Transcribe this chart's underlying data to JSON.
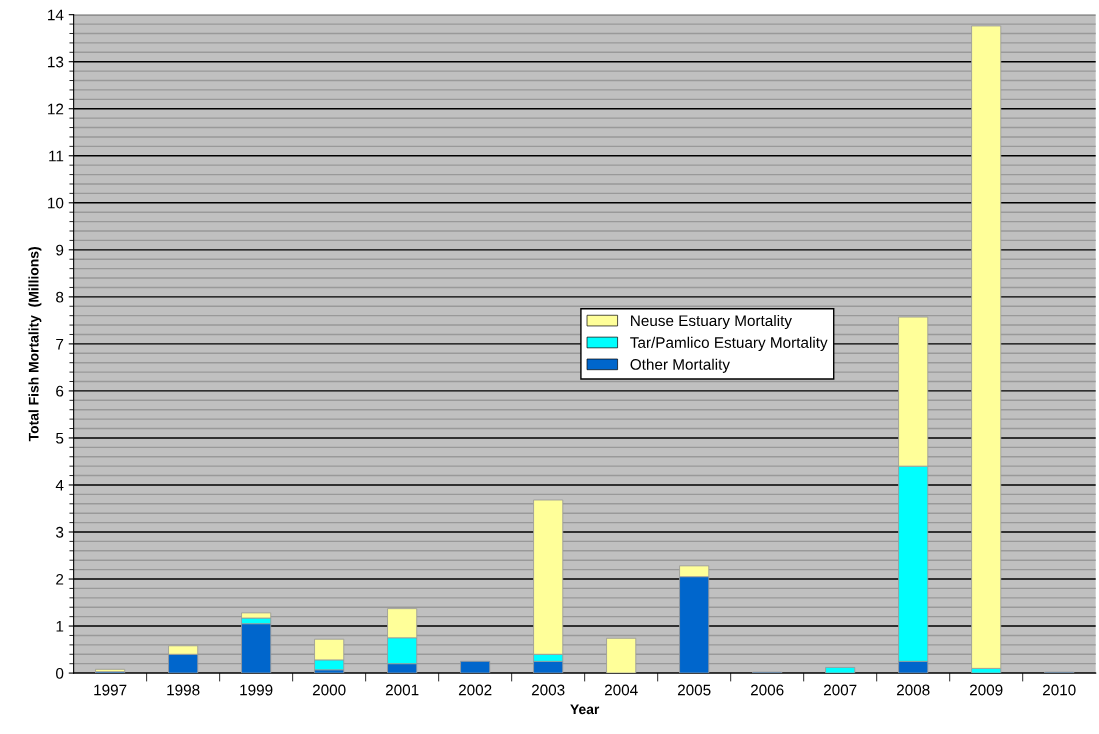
{
  "chart_data": {
    "type": "bar",
    "stacked": true,
    "xlabel": "Year",
    "ylabel": "Total Fish Mortality  (Millions)",
    "categories": [
      "1997",
      "1998",
      "1999",
      "2000",
      "2001",
      "2002",
      "2003",
      "2004",
      "2005",
      "2006",
      "2007",
      "2008",
      "2009",
      "2010"
    ],
    "series": [
      {
        "name": "Other Mortality",
        "color": "#0066cc",
        "values": [
          0.03,
          0.4,
          1.05,
          0.07,
          0.2,
          0.25,
          0.25,
          null,
          2.05,
          0.02,
          null,
          0.25,
          null,
          0.02
        ]
      },
      {
        "name": "Tar/Pamlico Estuary Mortality",
        "color": "#00ffff",
        "values": [
          null,
          null,
          0.12,
          0.21,
          0.55,
          null,
          0.15,
          null,
          null,
          null,
          0.12,
          4.15,
          0.1,
          null
        ]
      },
      {
        "name": "Neuse Estuary Mortality",
        "color": "#ffff99",
        "values": [
          0.05,
          0.18,
          0.11,
          0.44,
          0.62,
          null,
          3.28,
          0.74,
          0.23,
          null,
          null,
          3.17,
          13.66,
          null
        ]
      }
    ],
    "ylim": [
      0,
      14
    ],
    "yticks": [
      0,
      1,
      2,
      3,
      4,
      5,
      6,
      7,
      8,
      9,
      10,
      11,
      12,
      13,
      14
    ],
    "grid": "y",
    "legend": "center"
  }
}
